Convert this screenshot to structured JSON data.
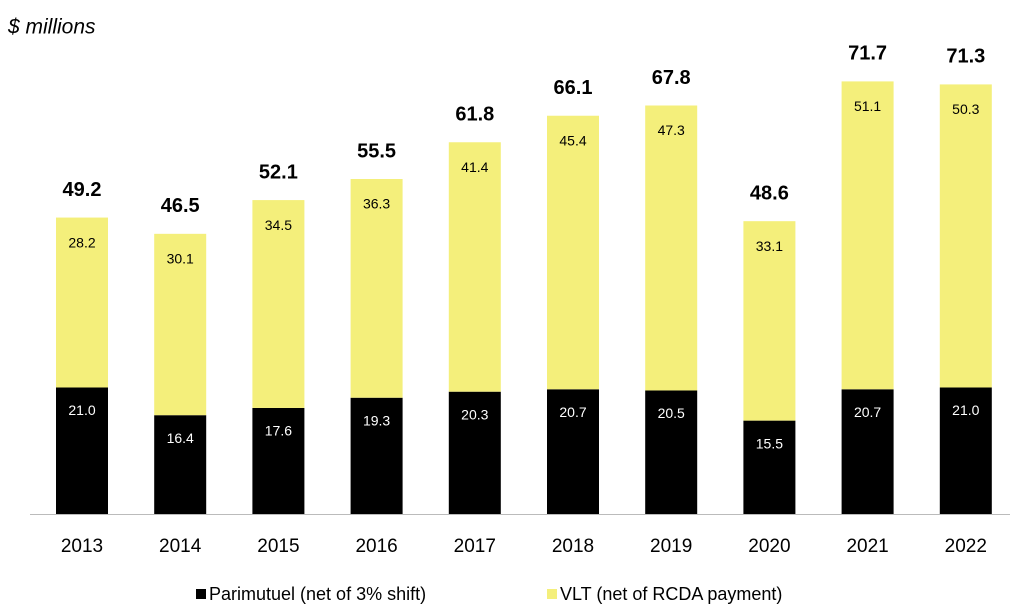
{
  "chart_data": {
    "type": "stacked_bar",
    "subtitle": "$ millions",
    "categories": [
      "2013",
      "2014",
      "2015",
      "2016",
      "2017",
      "2018",
      "2019",
      "2020",
      "2021",
      "2022"
    ],
    "series": [
      {
        "name": "Parimutuel (net of 3% shift)",
        "color": "#000000",
        "values": [
          21.0,
          16.4,
          17.6,
          19.3,
          20.3,
          20.7,
          20.5,
          15.5,
          20.7,
          21.0
        ],
        "value_labels": [
          "21.0",
          "16.4",
          "17.6",
          "19.3",
          "20.3",
          "20.7",
          "20.5",
          "15.5",
          "20.7",
          "21.0"
        ]
      },
      {
        "name": "VLT (net of RCDA payment)",
        "color": "#f4ef7b",
        "values": [
          28.2,
          30.1,
          34.5,
          36.3,
          41.4,
          45.4,
          47.3,
          33.1,
          51.1,
          50.3
        ],
        "value_labels": [
          "28.2",
          "30.1",
          "34.5",
          "36.3",
          "41.4",
          "45.4",
          "47.3",
          "33.1",
          "51.1",
          "50.3"
        ]
      }
    ],
    "totals": [
      49.2,
      46.5,
      52.1,
      55.5,
      61.8,
      66.1,
      67.8,
      48.6,
      71.7,
      71.3
    ]
  }
}
